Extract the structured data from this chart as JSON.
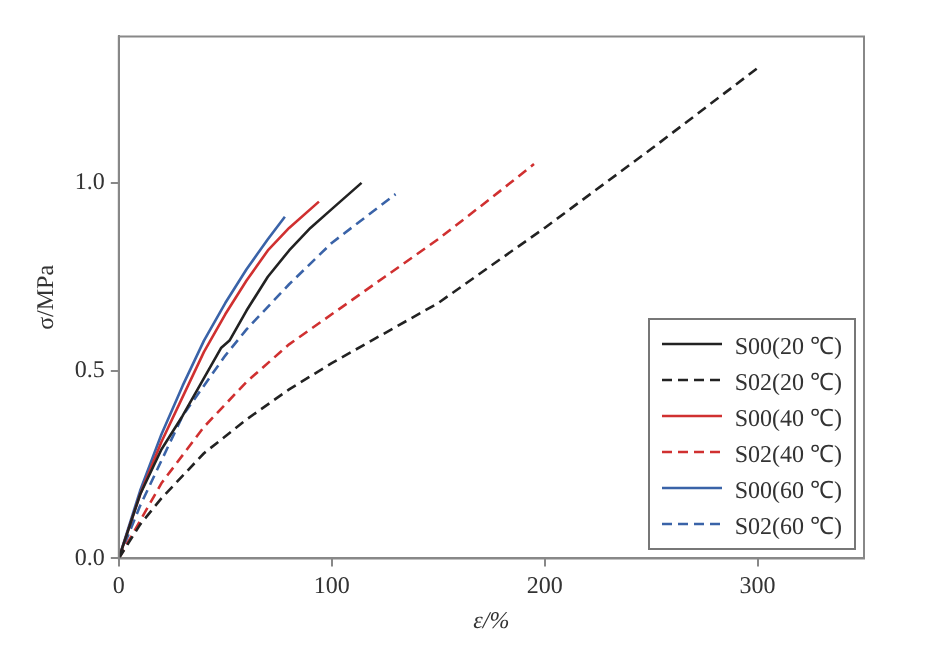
{
  "chart_data": {
    "type": "line",
    "xlabel": "ε/%",
    "ylabel": "σ/MPa",
    "xlim": [
      0,
      350
    ],
    "xticks": [
      0,
      100,
      200,
      300
    ],
    "ylim": [
      0,
      1.39
    ],
    "yticks": [
      {
        "value": 0,
        "label": "0.0"
      },
      {
        "value": 0.5,
        "label": "0.5"
      },
      {
        "value": 1,
        "label": "1.0"
      }
    ],
    "grid": false,
    "legend": "bottom right",
    "marker": "none",
    "series": [
      {
        "name": "S00(20 ℃)",
        "color": "#222222",
        "line_style": "solid",
        "x": [
          0,
          10,
          20,
          30,
          40,
          48,
          52,
          60,
          70,
          80,
          90,
          100,
          114
        ],
        "values": [
          0,
          0.17,
          0.29,
          0.38,
          0.48,
          0.56,
          0.58,
          0.66,
          0.75,
          0.82,
          0.88,
          0.93,
          1.0
        ]
      },
      {
        "name": "S02(20 ℃)",
        "color": "#222222",
        "line_style": "dashed",
        "x": [
          0,
          10,
          20,
          40,
          60,
          80,
          100,
          150,
          200,
          250,
          301
        ],
        "values": [
          0,
          0.09,
          0.16,
          0.28,
          0.37,
          0.45,
          0.52,
          0.68,
          0.88,
          1.09,
          1.31
        ]
      },
      {
        "name": "S00(40 ℃)",
        "color": "#d03030",
        "line_style": "solid",
        "x": [
          0,
          10,
          20,
          30,
          40,
          50,
          60,
          70,
          80,
          94
        ],
        "values": [
          0,
          0.17,
          0.31,
          0.43,
          0.55,
          0.65,
          0.74,
          0.82,
          0.88,
          0.95
        ]
      },
      {
        "name": "S02(40 ℃)",
        "color": "#d03030",
        "line_style": "dashed",
        "x": [
          0,
          10,
          20,
          40,
          60,
          80,
          100,
          125,
          150,
          175,
          195
        ],
        "values": [
          0,
          0.1,
          0.2,
          0.35,
          0.47,
          0.57,
          0.65,
          0.75,
          0.85,
          0.96,
          1.05
        ]
      },
      {
        "name": "S00(60 ℃)",
        "color": "#3a63a8",
        "line_style": "solid",
        "x": [
          0,
          10,
          20,
          30,
          40,
          50,
          60,
          70,
          78
        ],
        "values": [
          0,
          0.18,
          0.33,
          0.46,
          0.58,
          0.68,
          0.77,
          0.85,
          0.91
        ]
      },
      {
        "name": "S02(60 ℃)",
        "color": "#3a63a8",
        "line_style": "dashed",
        "x": [
          0,
          10,
          20,
          30,
          40,
          50,
          60,
          80,
          100,
          130
        ],
        "values": [
          0,
          0.14,
          0.26,
          0.38,
          0.46,
          0.54,
          0.61,
          0.73,
          0.84,
          0.97
        ]
      }
    ]
  }
}
